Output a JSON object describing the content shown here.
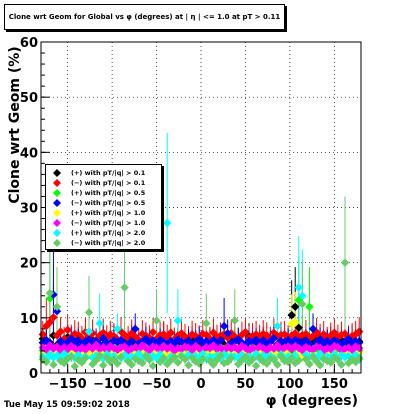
{
  "title": "Clone wrt Geom for Global vs φ (degrees) at | η | <= 1.0 at pT > 0.11",
  "footer_timestamp": "Tue May 15 09:59:02 2018",
  "chart_data": {
    "type": "scatter",
    "xlabel": "φ (degrees)",
    "ylabel": "Clone wrt  Geom (%)",
    "xlim": [
      -180,
      180
    ],
    "ylim": [
      0,
      60
    ],
    "x_ticks": [
      -150,
      -100,
      -50,
      0,
      50,
      100,
      150
    ],
    "x_tick_labels": [
      "−150",
      "−100",
      "−50",
      "0",
      "50",
      "100",
      "150"
    ],
    "y_ticks": [
      0,
      10,
      20,
      30,
      40,
      50,
      60
    ],
    "grid": true,
    "legend_position": "left-middle",
    "marker": "diamond",
    "series": [
      {
        "name": "(+) with pT/|q| > 0.1",
        "color": "#000000",
        "y": [
          6.2,
          5.8,
          5.5,
          6.8,
          5.1,
          4.9,
          5.6,
          6.5,
          5.3,
          5.0,
          6.1,
          5.7,
          4.8,
          5.2,
          6.0,
          5.5,
          6.3,
          5.1,
          4.6,
          5.4,
          6.6,
          5.9,
          5.2,
          4.9,
          5.8,
          6.4,
          5.3,
          5.0,
          5.7,
          6.2,
          5.5,
          4.8,
          5.1,
          5.9,
          6.8,
          5.4,
          5.0,
          5.6,
          6.1,
          5.2,
          4.7,
          5.5,
          6.3,
          5.8,
          5.1,
          4.9,
          5.6,
          6.0,
          5.3,
          5.7,
          6.4,
          5.2,
          4.8,
          5.5,
          6.1,
          5.9,
          5.3,
          5.0,
          6.7,
          5.4,
          4.9,
          5.8,
          6.2,
          5.1,
          5.6,
          6.5,
          5.2,
          4.8,
          5.7,
          6.0,
          10.5,
          12.0,
          8.2,
          6.3,
          5.5,
          5.9,
          5.2,
          6.1,
          5.4,
          4.9,
          5.8,
          6.2,
          5.5,
          5.1,
          6.0,
          5.6,
          5.3,
          6.4,
          5.0,
          5.7
        ]
      },
      {
        "name": "(−) with pT/|q| > 0.1",
        "color": "#ff0000",
        "y": [
          7.0,
          8.5,
          9.2,
          10.1,
          6.8,
          7.5,
          6.2,
          7.8,
          6.5,
          7.1,
          6.9,
          6.3,
          7.4,
          6.6,
          7.2,
          6.0,
          6.8,
          7.3,
          6.4,
          7.0,
          6.7,
          6.1,
          7.5,
          6.9,
          6.3,
          7.2,
          6.6,
          6.0,
          7.1,
          6.8,
          6.4,
          7.4,
          6.2,
          6.9,
          7.0,
          6.5,
          7.3,
          6.1,
          6.8,
          7.2,
          6.6,
          6.3,
          7.0,
          6.7,
          6.4,
          7.1,
          6.9,
          6.2,
          7.3,
          6.5,
          6.8,
          7.0,
          6.4,
          7.2,
          6.6,
          6.1,
          6.9,
          7.4,
          6.3,
          6.7,
          7.0,
          6.5,
          7.1,
          6.8,
          6.2,
          7.3,
          6.6,
          6.9,
          7.0,
          6.4,
          6.8,
          7.2,
          6.5,
          6.9,
          7.1,
          6.3,
          6.7,
          7.4,
          6.6,
          7.0,
          6.2,
          6.8,
          7.3,
          6.5,
          6.9,
          7.1,
          6.4,
          6.7,
          7.0,
          7.5
        ]
      },
      {
        "name": "(+) with pT/|q| > 0.5",
        "color": "#00ff00",
        "y": [
          4.1,
          3.8,
          13.5,
          4.6,
          3.9,
          4.3,
          4.0,
          3.6,
          4.8,
          4.2,
          3.7,
          4.4,
          4.1,
          3.9,
          4.5,
          4.0,
          3.8,
          4.6,
          4.2,
          3.5,
          4.3,
          4.9,
          4.0,
          3.7,
          4.4,
          4.1,
          3.8,
          4.7,
          4.3,
          3.9,
          4.0,
          4.5,
          3.6,
          4.2,
          4.8,
          3.9,
          4.1,
          4.4,
          3.7,
          4.6,
          4.0,
          3.8,
          4.3,
          4.9,
          4.1,
          3.6,
          4.5,
          4.2,
          3.9,
          4.0,
          4.7,
          4.4,
          3.8,
          4.1,
          4.6,
          3.9,
          4.3,
          4.0,
          3.7,
          4.8,
          4.2,
          3.9,
          4.5,
          4.1,
          3.6,
          4.4,
          4.0,
          3.8,
          4.7,
          4.2,
          4.1,
          4.6,
          13.2,
          4.3,
          3.9,
          12.0,
          4.5,
          4.0,
          3.8,
          4.4,
          4.1,
          3.7,
          4.6,
          4.2,
          3.9,
          4.3,
          4.0,
          4.8,
          3.6,
          4.1
        ]
      },
      {
        "name": "(−) with pT/|q| > 0.5",
        "color": "#0000ff",
        "y": [
          5.5,
          6.0,
          5.2,
          14.2,
          11.2,
          5.8,
          5.1,
          5.6,
          6.2,
          5.3,
          5.9,
          5.0,
          5.7,
          6.1,
          5.4,
          5.8,
          5.2,
          6.3,
          5.5,
          5.0,
          5.9,
          5.6,
          6.0,
          5.3,
          5.1,
          5.8,
          8.0,
          5.4,
          5.7,
          6.2,
          5.5,
          5.9,
          5.2,
          6.0,
          5.6,
          5.1,
          5.8,
          5.3,
          6.1,
          5.7,
          5.4,
          5.9,
          5.0,
          5.6,
          6.2,
          5.5,
          5.8,
          5.2,
          6.0,
          5.3,
          5.9,
          8.5,
          7.2,
          5.4,
          5.7,
          6.1,
          5.5,
          5.0,
          5.8,
          5.6,
          6.0,
          5.2,
          5.9,
          5.4,
          5.7,
          6.3,
          5.1,
          5.8,
          5.5,
          6.0,
          5.3,
          6.0,
          5.7,
          5.4,
          5.9,
          5.2,
          8.0,
          5.6,
          6.1,
          5.5,
          5.8,
          5.3,
          5.9,
          5.6,
          5.0,
          5.7,
          6.2,
          5.4,
          5.8,
          5.5
        ]
      },
      {
        "name": "(+) with pT/|q| > 1.0",
        "color": "#ffff00",
        "y": [
          3.5,
          3.2,
          3.9,
          3.0,
          3.6,
          3.3,
          3.8,
          3.1,
          3.4,
          3.7,
          3.0,
          3.5,
          3.2,
          3.9,
          3.3,
          3.6,
          3.1,
          3.8,
          3.4,
          3.0,
          3.7,
          3.2,
          3.5,
          3.9,
          3.1,
          3.6,
          3.3,
          3.0,
          3.8,
          3.4,
          3.2,
          3.7,
          3.5,
          3.0,
          3.9,
          3.3,
          3.6,
          3.1,
          3.4,
          3.8,
          3.2,
          3.5,
          3.0,
          3.7,
          3.3,
          3.9,
          3.1,
          3.6,
          3.4,
          3.2,
          3.8,
          3.5,
          3.0,
          3.7,
          3.3,
          3.6,
          3.1,
          3.9,
          3.4,
          3.2,
          3.5,
          3.8,
          3.0,
          3.6,
          3.3,
          3.7,
          3.1,
          3.4,
          3.9,
          3.2,
          8.9,
          9.2,
          3.5,
          3.0,
          3.8,
          3.3,
          3.6,
          3.1,
          3.4,
          3.7,
          3.2,
          3.9,
          3.5,
          3.0,
          3.6,
          3.3,
          3.8,
          3.1,
          3.4,
          3.7
        ]
      },
      {
        "name": "(−) with pT/|q| > 1.0",
        "color": "#ff00ff",
        "y": [
          4.6,
          4.2,
          5.0,
          4.4,
          4.8,
          4.1,
          4.7,
          4.3,
          4.9,
          4.5,
          4.0,
          4.6,
          4.2,
          4.8,
          4.4,
          5.1,
          4.3,
          4.7,
          4.1,
          4.9,
          4.5,
          4.2,
          4.6,
          4.8,
          4.0,
          4.4,
          4.7,
          4.3,
          5.0,
          4.5,
          4.1,
          4.8,
          4.6,
          4.2,
          4.9,
          4.4,
          4.7,
          4.0,
          4.5,
          4.3,
          4.8,
          4.6,
          4.1,
          4.9,
          4.4,
          4.2,
          4.7,
          4.5,
          5.0,
          4.3,
          4.6,
          4.1,
          4.8,
          4.4,
          4.7,
          4.2,
          4.9,
          4.5,
          4.0,
          4.6,
          4.3,
          4.8,
          4.5,
          4.1,
          4.7,
          4.4,
          5.0,
          4.2,
          4.6,
          4.8,
          4.3,
          4.9,
          4.5,
          4.1,
          4.7,
          4.4,
          4.2,
          4.8,
          4.6,
          4.0,
          4.5,
          4.3,
          4.9,
          4.7,
          4.1,
          4.4,
          4.6,
          4.2,
          4.8,
          4.5
        ]
      },
      {
        "name": "(+) with pT/|q| > 2.0",
        "color": "#00ffff",
        "y": [
          3.0,
          2.5,
          3.4,
          2.8,
          3.2,
          2.6,
          3.5,
          2.9,
          3.1,
          2.7,
          3.3,
          2.5,
          3.0,
          7.5,
          2.8,
          3.2,
          9.0,
          2.6,
          3.4,
          2.9,
          3.1,
          8.0,
          2.7,
          3.3,
          2.5,
          3.0,
          2.8,
          3.5,
          2.6,
          3.2,
          2.9,
          3.1,
          2.7,
          3.4,
          2.5,
          27.2,
          3.0,
          2.8,
          9.5,
          3.2,
          2.6,
          3.3,
          2.9,
          3.1,
          2.7,
          3.5,
          2.5,
          3.0,
          2.8,
          3.2,
          2.6,
          3.4,
          2.9,
          3.1,
          3.0,
          2.7,
          3.3,
          2.5,
          3.0,
          2.8,
          3.5,
          2.6,
          3.2,
          2.9,
          3.1,
          2.7,
          8.5,
          3.4,
          2.5,
          3.0,
          2.8,
          3.2,
          15.5,
          14.0,
          3.3,
          2.9,
          3.1,
          2.7,
          3.5,
          2.5,
          3.0,
          2.8,
          3.4,
          2.6,
          3.2,
          2.9,
          3.1,
          2.7,
          3.3,
          2.5
        ]
      },
      {
        "name": "(−) with pT/|q| > 2.0",
        "color": "#66cc66",
        "y": [
          2.5,
          2.0,
          14.5,
          1.5,
          12.0,
          2.2,
          1.8,
          2.6,
          3.0,
          1.2,
          2.4,
          1.9,
          2.7,
          11.0,
          1.6,
          2.3,
          3.2,
          1.4,
          2.8,
          2.0,
          2.5,
          1.7,
          2.9,
          15.5,
          2.1,
          1.5,
          2.6,
          2.2,
          1.8,
          3.1,
          2.4,
          1.3,
          9.5,
          2.0,
          2.7,
          1.6,
          2.3,
          2.9,
          1.9,
          3.0,
          2.5,
          1.4,
          2.8,
          2.1,
          1.7,
          2.6,
          9.0,
          2.2,
          1.5,
          2.4,
          3.2,
          1.8,
          2.0,
          2.7,
          9.5,
          1.6,
          2.3,
          2.9,
          1.9,
          2.5,
          1.3,
          2.8,
          2.1,
          1.7,
          2.6,
          2.4,
          1.5,
          3.0,
          2.2,
          2.0,
          2.7,
          1.8,
          2.3,
          12.5,
          2.5,
          1.6,
          2.9,
          2.1,
          1.4,
          2.6,
          2.2,
          1.9,
          2.8,
          2.4,
          1.5,
          20.0,
          1.8,
          2.5,
          2.0,
          2.7
        ]
      }
    ]
  }
}
